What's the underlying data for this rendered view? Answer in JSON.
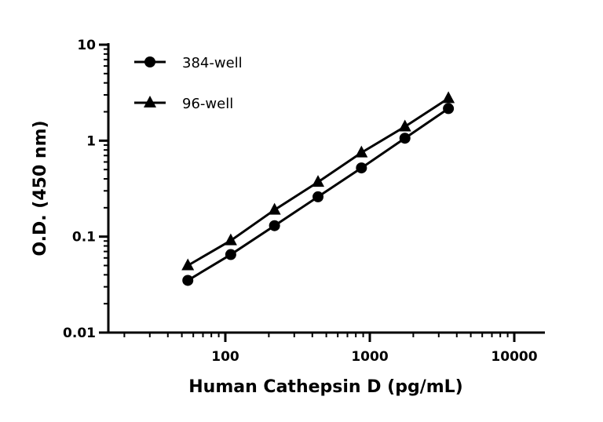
{
  "chart_data": {
    "type": "line",
    "title": "",
    "xlabel": "Human Cathepsin D (pg/mL)",
    "ylabel": "O.D. (450 nm)",
    "x_scale": "log",
    "y_scale": "log",
    "xlim": [
      15,
      16000
    ],
    "ylim": [
      0.01,
      10
    ],
    "x_ticks": [
      100,
      1000,
      10000
    ],
    "x_tick_labels": [
      "100",
      "1000",
      "10000"
    ],
    "y_ticks": [
      0.01,
      0.1,
      1,
      10
    ],
    "y_tick_labels": [
      "0.01",
      "0.1",
      "1",
      "10"
    ],
    "grid": false,
    "legend_placement": "top-left",
    "series": [
      {
        "name": "384-well",
        "marker": "circle",
        "color": "#000000",
        "x": [
          55,
          109,
          219,
          438,
          875,
          1750,
          3500
        ],
        "y": [
          0.035,
          0.065,
          0.13,
          0.26,
          0.52,
          1.06,
          2.16
        ]
      },
      {
        "name": "96-well",
        "marker": "triangle",
        "color": "#000000",
        "x": [
          55,
          109,
          219,
          438,
          875,
          1750,
          3500
        ],
        "y": [
          0.05,
          0.091,
          0.19,
          0.37,
          0.75,
          1.4,
          2.76
        ]
      }
    ]
  }
}
